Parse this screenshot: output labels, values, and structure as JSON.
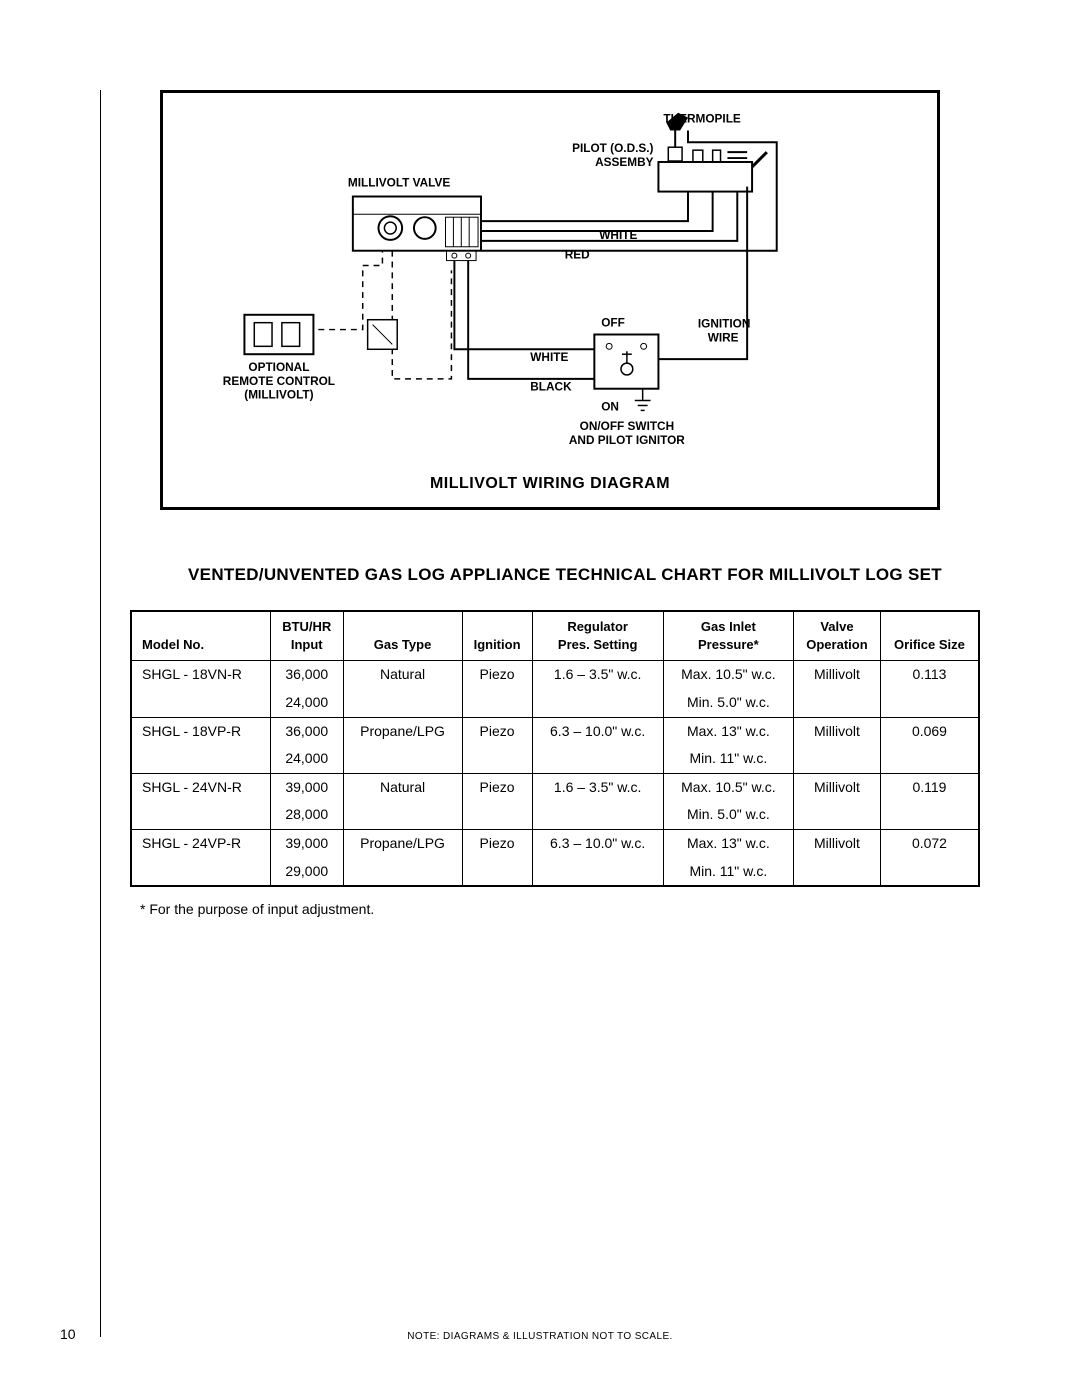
{
  "diagram": {
    "title": "MILLIVOLT WIRING DIAGRAM",
    "labels": {
      "thermopile": "THERMOPILE",
      "pilot_assembly_l1": "PILOT (O.D.S.)",
      "pilot_assembly_l2": "ASSEMBY",
      "millivolt_valve": "MILLIVOLT VALVE",
      "white_top": "WHITE",
      "red": "RED",
      "off": "OFF",
      "ignition_wire_l1": "IGNITION",
      "ignition_wire_l2": "WIRE",
      "white_switch": "WHITE",
      "black": "BLACK",
      "on": "ON",
      "onoff_l1": "ON/OFF SWITCH",
      "onoff_l2": "AND PILOT IGNITOR",
      "optional_l1": "OPTIONAL",
      "optional_l2": "REMOTE CONTROL",
      "optional_l3": "(MILLIVOLT)"
    }
  },
  "chart_title": "VENTED/UNVENTED GAS LOG APPLIANCE TECHNICAL CHART FOR MILLIVOLT LOG SET",
  "table": {
    "columns": [
      "Model No.",
      "BTU/HR\nInput",
      "Gas Type",
      "Ignition",
      "Regulator\nPres. Setting",
      "Gas Inlet\nPressure*",
      "Valve\nOperation",
      "Orifice Size"
    ],
    "rows": [
      {
        "model": "SHGL - 18VN-R",
        "btu1": "36,000",
        "btu2": "24,000",
        "gas": "Natural",
        "ign": "Piezo",
        "reg": "1.6 – 3.5\" w.c.",
        "press1": "Max. 10.5\" w.c.",
        "press2": "Min. 5.0\" w.c.",
        "valve": "Millivolt",
        "orifice": "0.113"
      },
      {
        "model": "SHGL - 18VP-R",
        "btu1": "36,000",
        "btu2": "24,000",
        "gas": "Propane/LPG",
        "ign": "Piezo",
        "reg": "6.3 – 10.0\" w.c.",
        "press1": "Max. 13\" w.c.",
        "press2": "Min. 11\" w.c.",
        "valve": "Millivolt",
        "orifice": "0.069"
      },
      {
        "model": "SHGL - 24VN-R",
        "btu1": "39,000",
        "btu2": "28,000",
        "gas": "Natural",
        "ign": "Piezo",
        "reg": "1.6 – 3.5\" w.c.",
        "press1": "Max. 10.5\" w.c.",
        "press2": "Min. 5.0\" w.c.",
        "valve": "Millivolt",
        "orifice": "0.119"
      },
      {
        "model": "SHGL - 24VP-R",
        "btu1": "39,000",
        "btu2": "29,000",
        "gas": "Propane/LPG",
        "ign": "Piezo",
        "reg": "6.3 – 10.0\" w.c.",
        "press1": "Max. 13\" w.c.",
        "press2": "Min. 11\" w.c.",
        "valve": "Millivolt",
        "orifice": "0.072"
      }
    ]
  },
  "footnote": "* For the purpose of input adjustment.",
  "page_number": "10",
  "footer_note": "NOTE: DIAGRAMS & ILLUSTRATION NOT TO SCALE."
}
